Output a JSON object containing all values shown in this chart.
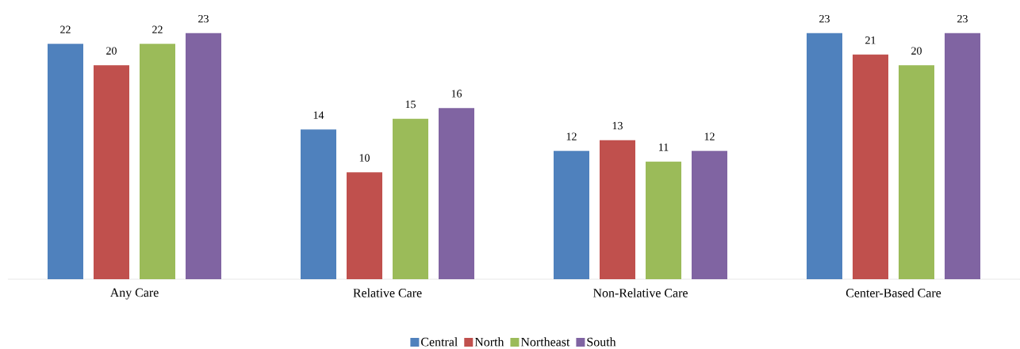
{
  "chart_data": {
    "type": "bar",
    "categories": [
      "Any Care",
      "Relative Care",
      "Non-Relative Care",
      "Center-Based Care"
    ],
    "series": [
      {
        "name": "Central",
        "color": "#4f81bd",
        "values": [
          22,
          14,
          12,
          23
        ]
      },
      {
        "name": "North",
        "color": "#c0504d",
        "values": [
          20,
          10,
          13,
          21
        ]
      },
      {
        "name": "Northeast",
        "color": "#9bbb59",
        "values": [
          22,
          15,
          11,
          20
        ]
      },
      {
        "name": "South",
        "color": "#8064a2",
        "values": [
          23,
          16,
          12,
          23
        ]
      }
    ],
    "data_labels": true,
    "legend": "bottom"
  }
}
